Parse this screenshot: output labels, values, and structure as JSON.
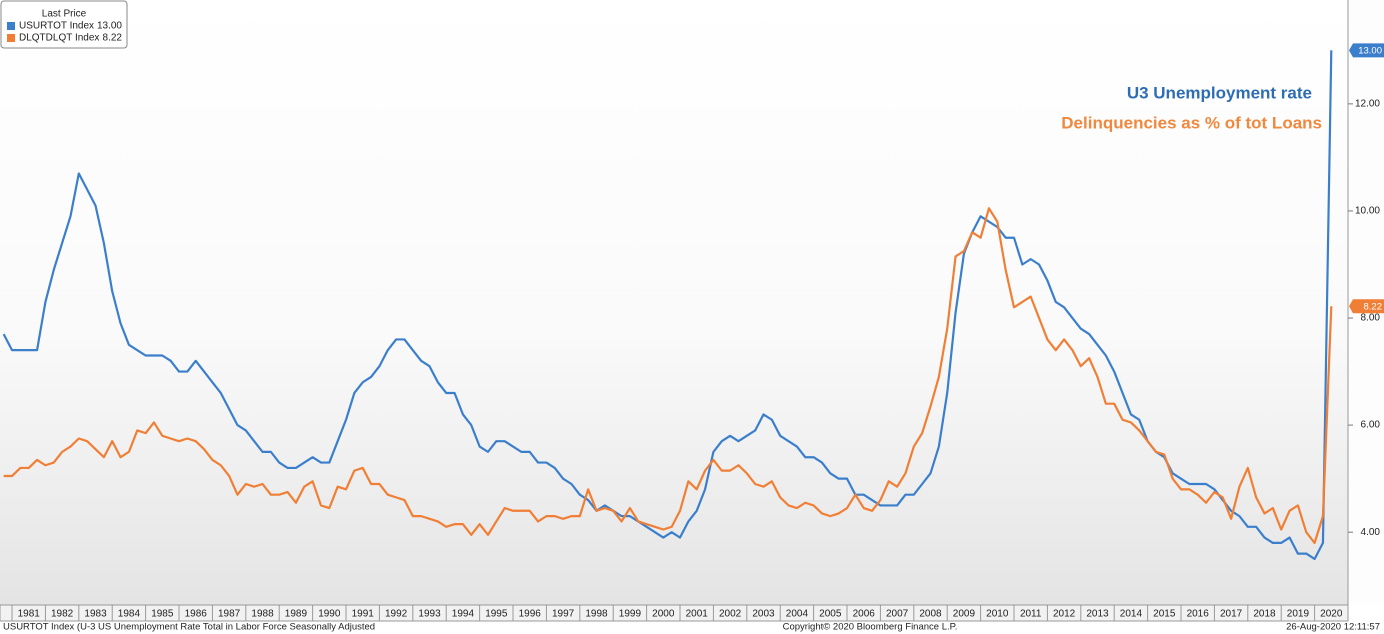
{
  "chart_data": {
    "type": "line",
    "annotations": [
      "U3 Unemployment rate",
      "Delinquencies as % of tot Loans"
    ],
    "legend_title": "Last Price",
    "footer": [
      "USURTOT Index (U-3 US Unemployment Rate Total in Labor Force Seasonally Adjusted",
      "Copyright© 2020 Bloomberg Finance L.P.",
      "26-Aug-2020 12:11:57"
    ],
    "x": [
      1980.75,
      1981,
      1981.25,
      1981.5,
      1981.75,
      1982,
      1982.25,
      1982.5,
      1982.75,
      1983,
      1983.25,
      1983.5,
      1983.75,
      1984,
      1984.25,
      1984.5,
      1984.75,
      1985,
      1985.25,
      1985.5,
      1985.75,
      1986,
      1986.25,
      1986.5,
      1986.75,
      1987,
      1987.25,
      1987.5,
      1987.75,
      1988,
      1988.25,
      1988.5,
      1988.75,
      1989,
      1989.25,
      1989.5,
      1989.75,
      1990,
      1990.25,
      1990.5,
      1990.75,
      1991,
      1991.25,
      1991.5,
      1991.75,
      1992,
      1992.25,
      1992.5,
      1992.75,
      1993,
      1993.25,
      1993.5,
      1993.75,
      1994,
      1994.25,
      1994.5,
      1994.75,
      1995,
      1995.25,
      1995.5,
      1995.75,
      1996,
      1996.25,
      1996.5,
      1996.75,
      1997,
      1997.25,
      1997.5,
      1997.75,
      1998,
      1998.25,
      1998.5,
      1998.75,
      1999,
      1999.25,
      1999.5,
      1999.75,
      2000,
      2000.25,
      2000.5,
      2000.75,
      2001,
      2001.25,
      2001.5,
      2001.75,
      2002,
      2002.25,
      2002.5,
      2002.75,
      2003,
      2003.25,
      2003.5,
      2003.75,
      2004,
      2004.25,
      2004.5,
      2004.75,
      2005,
      2005.25,
      2005.5,
      2005.75,
      2006,
      2006.25,
      2006.5,
      2006.75,
      2007,
      2007.25,
      2007.5,
      2007.75,
      2008,
      2008.25,
      2008.5,
      2008.75,
      2009,
      2009.25,
      2009.5,
      2009.75,
      2010,
      2010.25,
      2010.5,
      2010.75,
      2011,
      2011.25,
      2011.5,
      2011.75,
      2012,
      2012.25,
      2012.5,
      2012.75,
      2013,
      2013.25,
      2013.5,
      2013.75,
      2014,
      2014.25,
      2014.5,
      2014.75,
      2015,
      2015.25,
      2015.5,
      2015.75,
      2016,
      2016.25,
      2016.5,
      2016.75,
      2017,
      2017.25,
      2017.5,
      2017.75,
      2018,
      2018.25,
      2018.5,
      2018.75,
      2019,
      2019.25,
      2019.5,
      2019.75,
      2020,
      2020.25,
      2020.5
    ],
    "series": [
      {
        "name": "USURTOT Index",
        "color": "#3b7fcc",
        "values": [
          7.7,
          7.4,
          7.4,
          7.4,
          7.4,
          8.3,
          8.9,
          9.4,
          9.9,
          10.7,
          10.4,
          10.1,
          9.4,
          8.5,
          7.9,
          7.5,
          7.4,
          7.3,
          7.3,
          7.3,
          7.2,
          7.0,
          7.0,
          7.2,
          7.0,
          6.8,
          6.6,
          6.3,
          6.0,
          5.9,
          5.7,
          5.5,
          5.5,
          5.3,
          5.2,
          5.2,
          5.3,
          5.4,
          5.3,
          5.3,
          5.7,
          6.1,
          6.6,
          6.8,
          6.9,
          7.1,
          7.4,
          7.6,
          7.6,
          7.4,
          7.2,
          7.1,
          6.8,
          6.6,
          6.6,
          6.2,
          6.0,
          5.6,
          5.5,
          5.7,
          5.7,
          5.6,
          5.5,
          5.5,
          5.3,
          5.3,
          5.2,
          5.0,
          4.9,
          4.7,
          4.6,
          4.4,
          4.5,
          4.4,
          4.3,
          4.3,
          4.2,
          4.1,
          4.0,
          3.9,
          4.0,
          3.9,
          4.2,
          4.4,
          4.8,
          5.5,
          5.7,
          5.8,
          5.7,
          5.8,
          5.9,
          6.2,
          6.1,
          5.8,
          5.7,
          5.6,
          5.4,
          5.4,
          5.3,
          5.1,
          5.0,
          5.0,
          4.7,
          4.7,
          4.6,
          4.5,
          4.5,
          4.5,
          4.7,
          4.7,
          4.9,
          5.1,
          5.6,
          6.6,
          8.1,
          9.2,
          9.6,
          9.9,
          9.8,
          9.7,
          9.5,
          9.5,
          9.0,
          9.1,
          9.0,
          8.7,
          8.3,
          8.2,
          8.0,
          7.8,
          7.7,
          7.5,
          7.3,
          7.0,
          6.6,
          6.2,
          6.1,
          5.7,
          5.5,
          5.4,
          5.1,
          5.0,
          4.9,
          4.9,
          4.9,
          4.8,
          4.6,
          4.4,
          4.3,
          4.1,
          4.1,
          3.9,
          3.8,
          3.8,
          3.9,
          3.6,
          3.6,
          3.5,
          3.8,
          13.0
        ],
        "value_labels": [
          null,
          null,
          null,
          null,
          null,
          null,
          null,
          null,
          null,
          null,
          null,
          null,
          null,
          null,
          null,
          null,
          null,
          null,
          null,
          null,
          null,
          null,
          null,
          null,
          null,
          null,
          null,
          null,
          null,
          null,
          null,
          null,
          null,
          null,
          null,
          null,
          null,
          null,
          null,
          null,
          null,
          null,
          null,
          null,
          null,
          null,
          null,
          null,
          null,
          null,
          null,
          null,
          null,
          null,
          null,
          null,
          null,
          null,
          null,
          null,
          null,
          null,
          null,
          null,
          null,
          null,
          null,
          null,
          null,
          null,
          null,
          null,
          null,
          null,
          null,
          null,
          null,
          null,
          null,
          null,
          null,
          null,
          null,
          null,
          null,
          null,
          null,
          null,
          null,
          null,
          null,
          null,
          null,
          null,
          null,
          null,
          null,
          null,
          null,
          null,
          null,
          null,
          null,
          null,
          null,
          null,
          null,
          null,
          null,
          null,
          null,
          null,
          null,
          null,
          null,
          null,
          null,
          null,
          null,
          null,
          null,
          null,
          null,
          null,
          null,
          null,
          null,
          null,
          null,
          null,
          null,
          null,
          null,
          null,
          null,
          null,
          null,
          null,
          null,
          null,
          null,
          null,
          null,
          null,
          null,
          null,
          null,
          null,
          null,
          null,
          null,
          null,
          null,
          null,
          null,
          null,
          null,
          null,
          null,
          "13.00"
        ]
      },
      {
        "name": "DLQTDLQT Index",
        "color": "#f07f35",
        "values": [
          5.05,
          5.05,
          5.2,
          5.2,
          5.35,
          5.25,
          5.3,
          5.5,
          5.6,
          5.75,
          5.7,
          5.55,
          5.4,
          5.7,
          5.4,
          5.5,
          5.9,
          5.85,
          6.05,
          5.8,
          5.75,
          5.7,
          5.75,
          5.7,
          5.55,
          5.35,
          5.25,
          5.05,
          4.7,
          4.9,
          4.85,
          4.9,
          4.7,
          4.7,
          4.75,
          4.55,
          4.85,
          4.95,
          4.5,
          4.45,
          4.85,
          4.8,
          5.15,
          5.2,
          4.9,
          4.9,
          4.7,
          4.65,
          4.6,
          4.3,
          4.3,
          4.25,
          4.2,
          4.1,
          4.15,
          4.15,
          3.95,
          4.15,
          3.95,
          4.2,
          4.45,
          4.4,
          4.4,
          4.4,
          4.2,
          4.3,
          4.3,
          4.25,
          4.3,
          4.3,
          4.8,
          4.4,
          4.45,
          4.4,
          4.2,
          4.45,
          4.2,
          4.15,
          4.1,
          4.05,
          4.1,
          4.4,
          4.95,
          4.8,
          5.15,
          5.35,
          5.15,
          5.15,
          5.25,
          5.1,
          4.9,
          4.85,
          4.95,
          4.65,
          4.5,
          4.45,
          4.55,
          4.5,
          4.35,
          4.3,
          4.35,
          4.45,
          4.7,
          4.45,
          4.4,
          4.6,
          4.95,
          4.85,
          5.1,
          5.6,
          5.85,
          6.35,
          6.9,
          7.8,
          9.15,
          9.25,
          9.6,
          9.5,
          10.05,
          9.8,
          8.9,
          8.2,
          8.3,
          8.4,
          8.0,
          7.6,
          7.4,
          7.6,
          7.4,
          7.1,
          7.25,
          6.9,
          6.4,
          6.4,
          6.1,
          6.05,
          5.9,
          5.7,
          5.5,
          5.45,
          5.0,
          4.8,
          4.8,
          4.7,
          4.55,
          4.75,
          4.65,
          4.25,
          4.85,
          5.2,
          4.65,
          4.35,
          4.45,
          4.05,
          4.4,
          4.5,
          4.0,
          3.8,
          4.3,
          8.22
        ]
      }
    ],
    "xlim": [
      1980.64,
      2021.0
    ],
    "xticks": [
      1981,
      1982,
      1983,
      1984,
      1985,
      1986,
      1987,
      1988,
      1989,
      1990,
      1991,
      1992,
      1993,
      1994,
      1995,
      1996,
      1997,
      1998,
      1999,
      2000,
      2001,
      2002,
      2003,
      2004,
      2005,
      2006,
      2007,
      2008,
      2009,
      2010,
      2011,
      2012,
      2013,
      2014,
      2015,
      2016,
      2017,
      2018,
      2019,
      2020
    ],
    "ylim": [
      2.64,
      13.94
    ],
    "yticks": [
      {
        "value": 4,
        "label": "4.00"
      },
      {
        "value": 6,
        "label": "6.00"
      },
      {
        "value": 8,
        "label": "8.00"
      },
      {
        "value": 10,
        "label": "10.00"
      },
      {
        "value": 12,
        "label": "12.00"
      }
    ],
    "grid": false
  }
}
